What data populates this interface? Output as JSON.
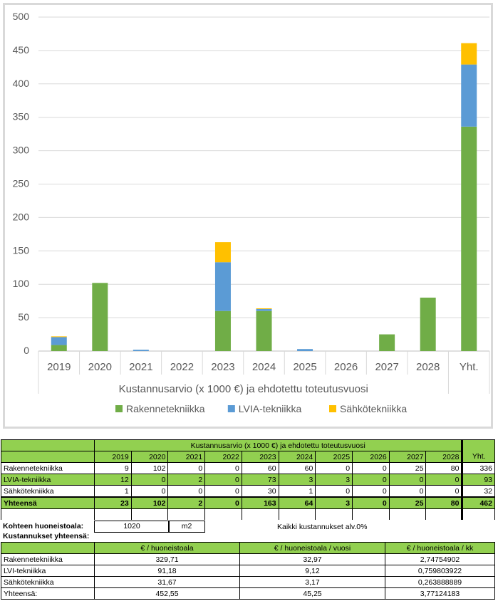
{
  "chart_data": {
    "type": "bar",
    "stacked": true,
    "categories": [
      "2019",
      "2020",
      "2021",
      "2022",
      "2023",
      "2024",
      "2025",
      "2026",
      "2027",
      "2028",
      "Yht."
    ],
    "series": [
      {
        "name": "Rakennetekniikka",
        "color": "#70ad47",
        "values": [
          9,
          102,
          0,
          0,
          60,
          60,
          0,
          0,
          25,
          80,
          336
        ]
      },
      {
        "name": "LVIA-tekniikka",
        "color": "#5b9bd5",
        "values": [
          12,
          0,
          2,
          0,
          73,
          3,
          3,
          0,
          0,
          0,
          93
        ]
      },
      {
        "name": "Sähkötekniikka",
        "color": "#ffc000",
        "values": [
          1,
          0,
          0,
          0,
          30,
          1,
          0,
          0,
          0,
          0,
          32
        ]
      }
    ],
    "xlabel": "Kustannusarvio (x 1000 €) ja ehdotettu toteutusvuosi",
    "ylim": [
      0,
      500
    ],
    "yticks": [
      0,
      50,
      100,
      150,
      200,
      250,
      300,
      350,
      400,
      450,
      500
    ],
    "grid": true,
    "legend": "bottom"
  },
  "cost_table": {
    "header_title": "Kustannusarvio (x 1000 €) ja ehdotettu toteutusvuosi",
    "years": [
      "2019",
      "2020",
      "2021",
      "2022",
      "2023",
      "2024",
      "2025",
      "2026",
      "2027",
      "2028"
    ],
    "total_header": "Yht.",
    "rows": [
      {
        "label": "Rakennetekniikka",
        "values": [
          "9",
          "102",
          "0",
          "0",
          "60",
          "60",
          "0",
          "0",
          "25",
          "80"
        ],
        "total": "336"
      },
      {
        "label": "LVIA-tekniikka",
        "values": [
          "12",
          "0",
          "2",
          "0",
          "73",
          "3",
          "3",
          "0",
          "0",
          "0"
        ],
        "total": "93"
      },
      {
        "label": "Sähkötekniikka",
        "values": [
          "1",
          "0",
          "0",
          "0",
          "30",
          "1",
          "0",
          "0",
          "0",
          "0"
        ],
        "total": "32"
      }
    ],
    "sum_row": {
      "label": "Yhteensä",
      "values": [
        "23",
        "102",
        "2",
        "0",
        "163",
        "64",
        "3",
        "0",
        "25",
        "80"
      ],
      "total": "462"
    }
  },
  "area": {
    "label": "Kohteen huoneistoala:",
    "value": "1020",
    "unit": "m2",
    "note": "Kaikki kustannukset alv.0%"
  },
  "summary": {
    "title": "Kustannukset yhteensä:",
    "headers": [
      "€ / huoneistoala",
      "€ / huoneistoala / vuosi",
      "€ / huoneistoala / kk"
    ],
    "rows": [
      {
        "label": "Rakennetekniikka",
        "values": [
          "329,71",
          "32,97",
          "2,74754902"
        ]
      },
      {
        "label": "LVI-tekniikka",
        "values": [
          "91,18",
          "9,12",
          "0,759803922"
        ]
      },
      {
        "label": "Sähkötekniikka",
        "values": [
          "31,67",
          "3,17",
          "0,263888889"
        ]
      },
      {
        "label": "Yhteensä:",
        "values": [
          "452,55",
          "45,25",
          "3,77124183"
        ]
      }
    ]
  }
}
